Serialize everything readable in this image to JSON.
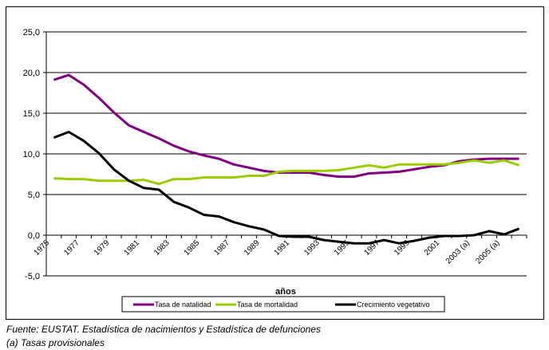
{
  "chart_data": {
    "type": "line",
    "title": "",
    "xlabel": "años",
    "ylabel": "",
    "ylim": [
      -5,
      25
    ],
    "yticks": [
      "-5,0",
      "0,0",
      "5,0",
      "10,0",
      "15,0",
      "20,0",
      "25,0"
    ],
    "ytick_values": [
      -5,
      0,
      5,
      10,
      15,
      20,
      25
    ],
    "grid": true,
    "legend": "bottom",
    "categories": [
      "1975",
      "1976",
      "1977",
      "1978",
      "1979",
      "1980",
      "1981",
      "1982",
      "1983",
      "1984",
      "1985",
      "1986",
      "1987",
      "1988",
      "1989",
      "1990",
      "1991",
      "1992",
      "1993",
      "1994",
      "1995",
      "1996",
      "1997",
      "1998",
      "1999",
      "2000",
      "2001",
      "2002",
      "2003 (a)",
      "2004",
      "2005 (a)",
      "2006"
    ],
    "xtick_labels": [
      "1975",
      "1977",
      "1979",
      "1981",
      "1983",
      "1985",
      "1987",
      "1989",
      "1991",
      "1993",
      "1995",
      "1997",
      "1999",
      "2001",
      "2003 (a)",
      "2005 (a)"
    ],
    "series": [
      {
        "name": "Tasa de natalidad",
        "color": "#800080",
        "values": [
          19.1,
          19.7,
          18.5,
          16.9,
          15.1,
          13.5,
          12.7,
          11.9,
          11.0,
          10.3,
          9.8,
          9.4,
          8.7,
          8.3,
          7.9,
          7.7,
          7.7,
          7.7,
          7.4,
          7.2,
          7.2,
          7.6,
          7.7,
          7.8,
          8.1,
          8.4,
          8.6,
          9.1,
          9.3,
          9.4,
          9.4,
          9.4
        ]
      },
      {
        "name": "Tasa de mortalidad",
        "color": "#99CC00",
        "values": [
          7.0,
          6.9,
          6.9,
          6.7,
          6.7,
          6.7,
          6.8,
          6.3,
          6.9,
          6.9,
          7.1,
          7.1,
          7.1,
          7.3,
          7.3,
          7.8,
          7.9,
          7.9,
          7.9,
          8.0,
          8.3,
          8.6,
          8.3,
          8.7,
          8.7,
          8.7,
          8.7,
          8.9,
          9.2,
          8.9,
          9.2,
          8.6
        ]
      },
      {
        "name": "Crecimiento vegetativo",
        "color": "#000000",
        "values": [
          12.0,
          12.7,
          11.6,
          10.1,
          8.1,
          6.7,
          5.8,
          5.6,
          4.1,
          3.4,
          2.5,
          2.3,
          1.6,
          1.1,
          0.7,
          -0.1,
          -0.2,
          -0.2,
          -0.6,
          -0.8,
          -1.0,
          -1.0,
          -0.6,
          -1.0,
          -0.7,
          -0.3,
          -0.1,
          -0.1,
          0.0,
          0.5,
          0.1,
          0.8
        ]
      }
    ]
  },
  "footnotes": {
    "source": "Fuente: EUSTAT. Estadística de nacimientos y Estadística de defunciones",
    "note": "(a) Tasas provisionales"
  }
}
